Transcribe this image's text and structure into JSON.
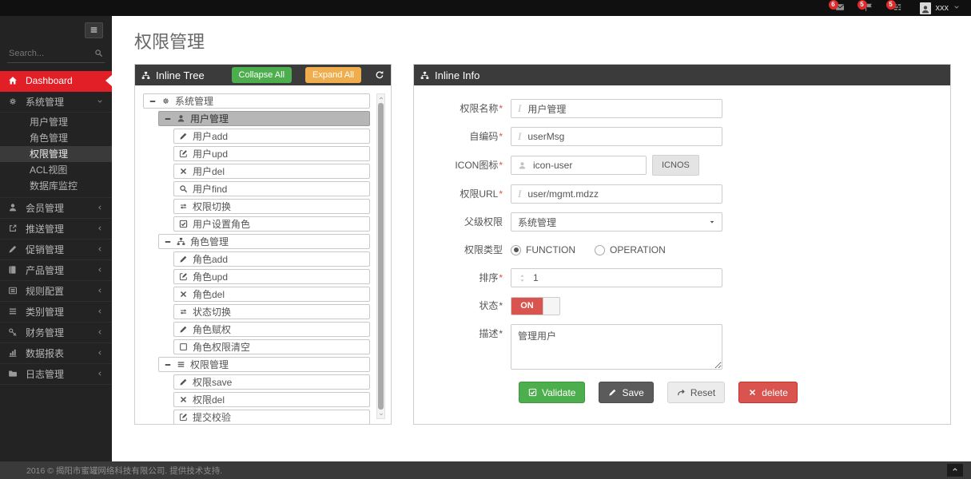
{
  "colors": {
    "accent": "#e21f26",
    "success": "#4cae4c",
    "warning": "#f0ad4e",
    "danger": "#d9534f",
    "header": "#3b3b3b"
  },
  "topbar": {
    "user_name": "xxx",
    "badges": [
      {
        "icon": "envelope-icon",
        "count": "6"
      },
      {
        "icon": "flag-icon",
        "count": "5"
      },
      {
        "icon": "tasks-icon",
        "count": "5"
      }
    ]
  },
  "sidebar": {
    "search_placeholder": "Search...",
    "items": [
      {
        "label": "Dashboard",
        "icon": "home-icon",
        "active_red": true
      },
      {
        "label": "系统管理",
        "icon": "gears-icon",
        "expanded": true,
        "children": [
          {
            "label": "用户管理"
          },
          {
            "label": "角色管理"
          },
          {
            "label": "权限管理",
            "active": true
          },
          {
            "label": "ACL视图"
          },
          {
            "label": "数据库监控"
          }
        ]
      },
      {
        "label": "会员管理",
        "icon": "user-icon"
      },
      {
        "label": "推送管理",
        "icon": "share-icon"
      },
      {
        "label": "促销管理",
        "icon": "pencil-icon"
      },
      {
        "label": "产品管理",
        "icon": "book-icon"
      },
      {
        "label": "规则配置",
        "icon": "list-alt-icon"
      },
      {
        "label": "类别管理",
        "icon": "bars-icon"
      },
      {
        "label": "财务管理",
        "icon": "key-icon"
      },
      {
        "label": "数据报表",
        "icon": "chart-icon"
      },
      {
        "label": "日志管理",
        "icon": "folder-icon"
      }
    ]
  },
  "page": {
    "title": "权限管理"
  },
  "tree_panel": {
    "title": "Inline Tree",
    "icon": "sitemap-icon",
    "collapse_label": "Collapse All",
    "expand_label": "Expand All",
    "refresh_icon": "refresh-icon",
    "nodes": [
      {
        "label": "系统管理",
        "level": 1,
        "toggle": "-",
        "icon": "gears-icon"
      },
      {
        "label": "用户管理",
        "level": 2,
        "toggle": "-",
        "icon": "user-icon",
        "selected": true
      },
      {
        "label": "用户add",
        "level": 3,
        "icon": "pencil-icon"
      },
      {
        "label": "用户upd",
        "level": 3,
        "icon": "edit-icon"
      },
      {
        "label": "用户del",
        "level": 3,
        "icon": "x-icon"
      },
      {
        "label": "用户find",
        "level": 3,
        "icon": "search-icon"
      },
      {
        "label": "权限切换",
        "level": 3,
        "icon": "retweet-icon"
      },
      {
        "label": "用户设置角色",
        "level": 3,
        "icon": "check-square-icon"
      },
      {
        "label": "角色管理",
        "level": 2,
        "toggle": "-",
        "icon": "sitemap-icon"
      },
      {
        "label": "角色add",
        "level": 3,
        "icon": "pencil-icon"
      },
      {
        "label": "角色upd",
        "level": 3,
        "icon": "edit-icon"
      },
      {
        "label": "角色del",
        "level": 3,
        "icon": "x-icon"
      },
      {
        "label": "状态切换",
        "level": 3,
        "icon": "retweet-icon"
      },
      {
        "label": "角色赋权",
        "level": 3,
        "icon": "pencil-icon"
      },
      {
        "label": "角色权限清空",
        "level": 3,
        "icon": "square-icon"
      },
      {
        "label": "权限管理",
        "level": 2,
        "toggle": "-",
        "icon": "bars-icon"
      },
      {
        "label": "权限save",
        "level": 3,
        "icon": "pencil-icon"
      },
      {
        "label": "权限del",
        "level": 3,
        "icon": "x-icon"
      },
      {
        "label": "提交校验",
        "level": 3,
        "icon": "edit-icon"
      }
    ]
  },
  "info_panel": {
    "title": "Inline Info",
    "icon": "sitemap-icon",
    "fields": [
      {
        "name": "permission-name",
        "label": "权限名称",
        "required": true,
        "req_red": true,
        "type": "input",
        "icon": "italic-icon",
        "value": "用户管理"
      },
      {
        "name": "code",
        "label": "自编码",
        "required": true,
        "req_red": true,
        "type": "input",
        "icon": "italic-icon",
        "value": "userMsg"
      },
      {
        "name": "icon",
        "label": "ICON图标",
        "required": true,
        "req_red": true,
        "type": "input-button",
        "icon": "user-icon",
        "value": "icon-user",
        "button_label": "ICNOS"
      },
      {
        "name": "url",
        "label": "权限URL",
        "required": true,
        "req_red": true,
        "type": "input",
        "icon": "italic-icon",
        "value": "user/mgmt.mdzz"
      },
      {
        "name": "parent-permission",
        "label": "父级权限",
        "required": false,
        "type": "select",
        "value": "系统管理"
      },
      {
        "name": "permission-type",
        "label": "权限类型",
        "required": false,
        "type": "radio",
        "options": [
          {
            "label": "FUNCTION",
            "checked": true
          },
          {
            "label": "OPERATION",
            "checked": false
          }
        ]
      },
      {
        "name": "sort",
        "label": "排序",
        "required": true,
        "req_red": true,
        "type": "input",
        "icon": "sort-icon",
        "value": "1"
      },
      {
        "name": "status",
        "label": "状态",
        "required": true,
        "req_red": false,
        "type": "toggle",
        "value": "ON"
      },
      {
        "name": "description",
        "label": "描述",
        "required": true,
        "req_red": false,
        "type": "textarea",
        "value": "管理用户"
      }
    ],
    "buttons": [
      {
        "name": "validate",
        "label": "Validate",
        "icon": "check-square-icon",
        "style": "success"
      },
      {
        "name": "save",
        "label": "Save",
        "icon": "pencil-icon",
        "style": "dark"
      },
      {
        "name": "reset",
        "label": "Reset",
        "icon": "forward-icon",
        "style": "light"
      },
      {
        "name": "delete",
        "label": "delete",
        "icon": "x-icon",
        "style": "danger"
      }
    ]
  },
  "footer": {
    "text": "2016 © 揭阳市蜜罐网络科技有限公司. 提供技术支持."
  }
}
